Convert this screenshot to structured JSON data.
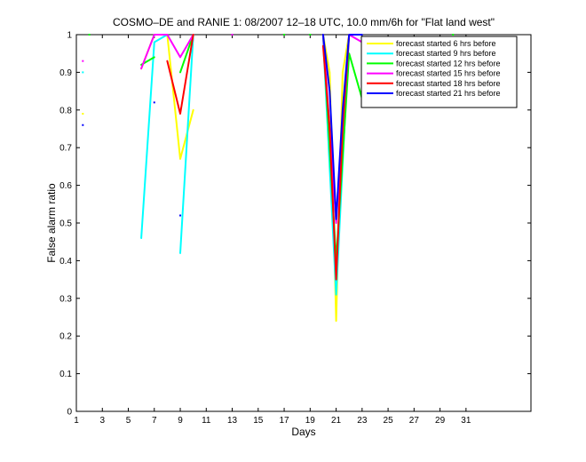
{
  "chart_data": {
    "type": "line",
    "title": "COSMO–DE and RANIE 1: 08/2007 12–18 UTC, 10.0 mm/6h for \"Flat land west\"",
    "xlabel": "Days",
    "ylabel": "False alarm ratio",
    "xlim": [
      1,
      36
    ],
    "ylim": [
      0,
      1
    ],
    "x_ticks": [
      1,
      3,
      5,
      7,
      9,
      11,
      13,
      15,
      17,
      19,
      21,
      23,
      25,
      27,
      29,
      31
    ],
    "y_ticks": [
      0,
      0.1,
      0.2,
      0.3,
      0.4,
      0.5,
      0.6,
      0.7,
      0.8,
      0.9,
      1
    ],
    "legend_position": "top-right",
    "series": [
      {
        "name": "forecast started 6 hrs before",
        "color": "#ffff00",
        "segments": [
          [
            [
              6,
              0.91
            ],
            [
              7,
              1
            ],
            [
              8,
              1
            ],
            [
              9,
              0.67
            ],
            [
              10,
              0.8
            ]
          ],
          [
            [
              20,
              1
            ],
            [
              20.5,
              0.9
            ],
            [
              21,
              0.24
            ],
            [
              21.5,
              0.9
            ],
            [
              22,
              1
            ]
          ]
        ],
        "points": [
          [
            1.5,
            0.79
          ],
          [
            31,
            0.97
          ]
        ]
      },
      {
        "name": "forecast started 9 hrs before",
        "color": "#00ffff",
        "segments": [
          [
            [
              6,
              0.46
            ],
            [
              7,
              0.98
            ],
            [
              8,
              1
            ]
          ],
          [
            [
              9,
              0.42
            ],
            [
              10,
              1
            ]
          ],
          [
            [
              20,
              0.99
            ],
            [
              21,
              0.31
            ],
            [
              22,
              1
            ]
          ]
        ],
        "points": [
          [
            1.5,
            0.9
          ]
        ]
      },
      {
        "name": "forecast started 12 hrs before",
        "color": "#00ff00",
        "segments": [
          [
            [
              6,
              0.92
            ],
            [
              7,
              0.94
            ]
          ],
          [
            [
              9,
              0.9
            ],
            [
              10,
              1
            ]
          ],
          [
            [
              20,
              1
            ],
            [
              21,
              0.4
            ],
            [
              22,
              0.95
            ],
            [
              23,
              0.83
            ]
          ]
        ],
        "points": [
          [
            2,
            1
          ],
          [
            17,
            1
          ],
          [
            19,
            1
          ],
          [
            30,
            1
          ]
        ]
      },
      {
        "name": "forecast started 15 hrs before",
        "color": "#ff00ff",
        "segments": [
          [
            [
              6,
              0.91
            ],
            [
              7,
              1
            ],
            [
              8,
              1
            ],
            [
              9,
              0.94
            ],
            [
              10,
              1
            ]
          ],
          [
            [
              20,
              1
            ],
            [
              21,
              0.5
            ],
            [
              22,
              1
            ],
            [
              23,
              0.98
            ]
          ]
        ],
        "points": [
          [
            1.5,
            0.93
          ],
          [
            13,
            1
          ]
        ]
      },
      {
        "name": "forecast started 18 hrs before",
        "color": "#ff0000",
        "segments": [
          [
            [
              8,
              0.93
            ],
            [
              9,
              0.79
            ],
            [
              10,
              1
            ]
          ],
          [
            [
              20,
              0.97
            ],
            [
              20.5,
              0.75
            ],
            [
              21,
              0.35
            ],
            [
              21.5,
              0.75
            ],
            [
              22,
              1
            ]
          ]
        ],
        "points": []
      },
      {
        "name": "forecast started 21 hrs before",
        "color": "#0000ff",
        "segments": [
          [
            [
              20,
              1
            ],
            [
              20.5,
              0.85
            ],
            [
              21,
              0.51
            ],
            [
              21.5,
              0.8
            ],
            [
              22,
              1
            ],
            [
              23,
              1
            ]
          ]
        ],
        "points": [
          [
            1.5,
            0.76
          ],
          [
            7,
            0.82
          ],
          [
            9,
            0.52
          ]
        ]
      }
    ]
  }
}
